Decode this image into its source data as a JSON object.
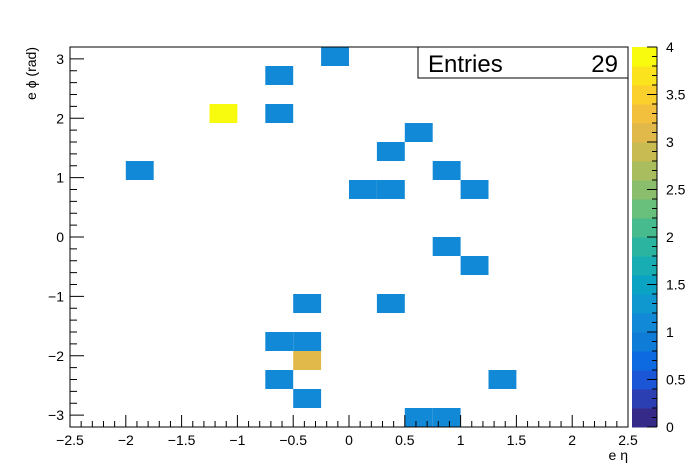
{
  "chart_data": {
    "type": "heatmap",
    "xlabel": "e η",
    "ylabel": "e ϕ  (rad)",
    "xlim": [
      -2.5,
      2.5
    ],
    "ylim": [
      -3.2,
      3.2
    ],
    "x_ticks": [
      "−2.5",
      "−2",
      "−1.5",
      "−1",
      "−0.5",
      "0",
      "0.5",
      "1",
      "1.5",
      "2",
      "2.5"
    ],
    "x_tick_values": [
      -2.5,
      -2,
      -1.5,
      -1,
      -0.5,
      0,
      0.5,
      1,
      1.5,
      2,
      2.5
    ],
    "y_ticks": [
      "−3",
      "−2",
      "−1",
      "0",
      "1",
      "2",
      "3"
    ],
    "y_tick_values": [
      -3,
      -2,
      -1,
      0,
      1,
      2,
      3
    ],
    "bin_size": {
      "x": 0.25,
      "y": 0.32
    },
    "cells": [
      {
        "x": -0.25,
        "y": 2.88,
        "count": 1
      },
      {
        "x": -0.75,
        "y": 2.56,
        "count": 1
      },
      {
        "x": -1.25,
        "y": 1.92,
        "count": 4
      },
      {
        "x": -0.75,
        "y": 1.92,
        "count": 1
      },
      {
        "x": 0.5,
        "y": 1.6,
        "count": 1
      },
      {
        "x": 0.25,
        "y": 1.28,
        "count": 1
      },
      {
        "x": -2.0,
        "y": 0.96,
        "count": 1
      },
      {
        "x": 0.75,
        "y": 0.96,
        "count": 1
      },
      {
        "x": 0.0,
        "y": 0.64,
        "count": 1
      },
      {
        "x": 0.25,
        "y": 0.64,
        "count": 1
      },
      {
        "x": 1.0,
        "y": 0.64,
        "count": 1
      },
      {
        "x": 0.75,
        "y": -0.32,
        "count": 1
      },
      {
        "x": 1.0,
        "y": -0.64,
        "count": 1
      },
      {
        "x": -0.5,
        "y": -1.28,
        "count": 1
      },
      {
        "x": 0.25,
        "y": -1.28,
        "count": 1
      },
      {
        "x": -0.75,
        "y": -1.92,
        "count": 1
      },
      {
        "x": -0.5,
        "y": -1.92,
        "count": 1
      },
      {
        "x": -0.5,
        "y": -2.24,
        "count": 3
      },
      {
        "x": -0.75,
        "y": -2.56,
        "count": 1
      },
      {
        "x": 1.25,
        "y": -2.56,
        "count": 1
      },
      {
        "x": -0.5,
        "y": -2.88,
        "count": 1
      },
      {
        "x": 0.5,
        "y": -3.2,
        "count": 1
      },
      {
        "x": 0.75,
        "y": -3.2,
        "count": 1
      }
    ],
    "stats": {
      "label": "Entries",
      "value": "29"
    },
    "palette": {
      "min": 0,
      "max": 4,
      "ticks": [
        "0",
        "0.5",
        "1",
        "1.5",
        "2",
        "2.5",
        "3",
        "3.5",
        "4"
      ],
      "tick_values": [
        0,
        0.5,
        1,
        1.5,
        2,
        2.5,
        3,
        3.5,
        4
      ],
      "colors": [
        "#352a87",
        "#2c3fb2",
        "#1a56d6",
        "#0d6ae0",
        "#0f7dd8",
        "#1289d6",
        "#0f97cf",
        "#0ba3c3",
        "#17adb2",
        "#2bb5a1",
        "#48bb8e",
        "#69bf7c",
        "#8bbe6c",
        "#aabd5e",
        "#c7bb52",
        "#e0b94a",
        "#f3c03d",
        "#fbd02c",
        "#fbe41d",
        "#f9fb0e"
      ]
    }
  }
}
